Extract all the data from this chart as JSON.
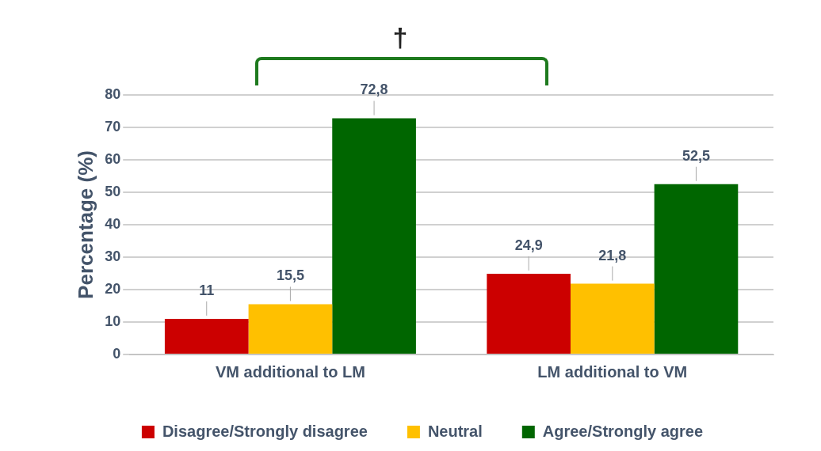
{
  "chart_data": {
    "type": "bar",
    "ylabel": "Percentage (%)",
    "categories": [
      "VM additional to LM",
      "LM additional to VM"
    ],
    "series": [
      {
        "name": "Disagree/Strongly disagree",
        "color": "#cc0000",
        "values": [
          11,
          24.9
        ],
        "value_labels": [
          "11",
          "24,9"
        ]
      },
      {
        "name": "Neutral",
        "color": "#ffc000",
        "values": [
          15.5,
          21.8
        ],
        "value_labels": [
          "15,5",
          "21,8"
        ]
      },
      {
        "name": "Agree/Strongly agree",
        "color": "#006600",
        "values": [
          72.8,
          52.5
        ],
        "value_labels": [
          "72,8",
          "52,5"
        ]
      }
    ],
    "ylim": [
      0,
      80
    ],
    "yticks": [
      0,
      10,
      20,
      30,
      40,
      50,
      60,
      70,
      80
    ],
    "grid": "y",
    "legend": "bottom",
    "annotations": [
      "†"
    ]
  }
}
